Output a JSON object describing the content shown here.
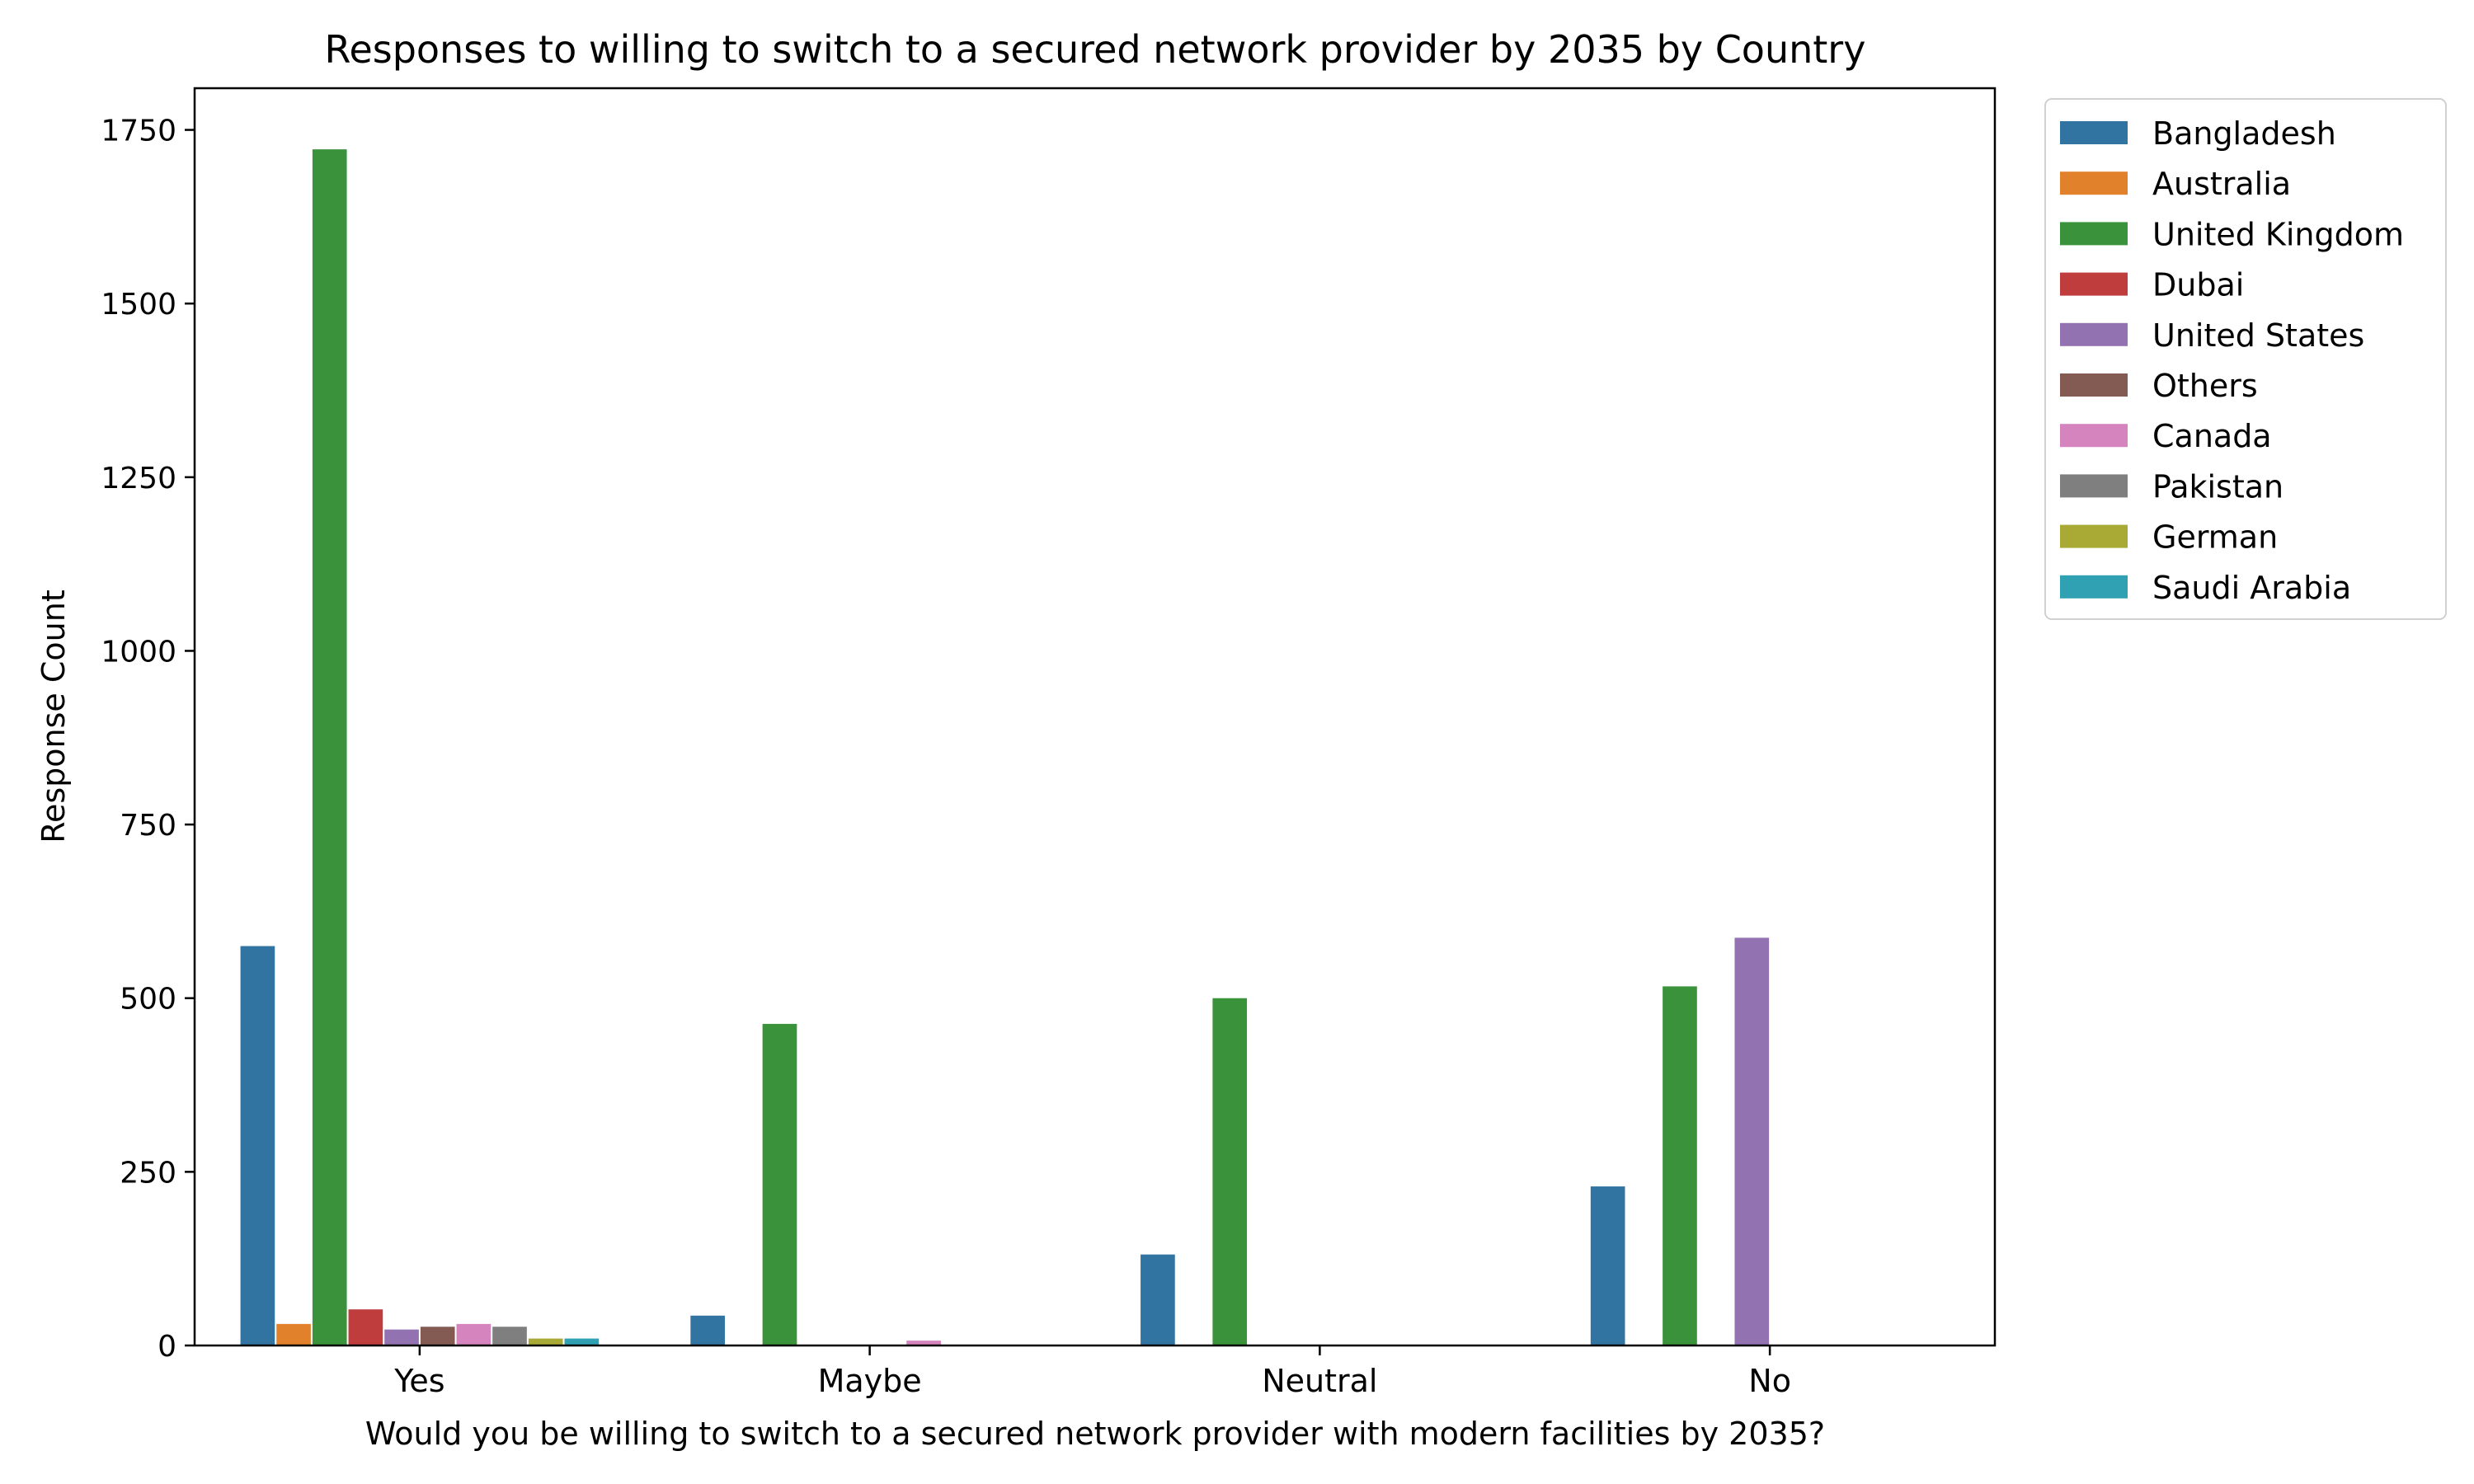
{
  "chart_data": {
    "type": "bar",
    "title": "Responses to willing to switch to a secured network provider by 2035 by Country",
    "xlabel": "Would you be willing to switch to a secured network provider with modern facilities by 2035?",
    "ylabel": "Response Count",
    "categories": [
      "Yes",
      "Maybe",
      "Neutral",
      "No"
    ],
    "ylim": [
      0,
      1810
    ],
    "yticks": [
      0,
      250,
      500,
      750,
      1000,
      1250,
      1500,
      1750
    ],
    "grid": false,
    "legend_position": "upper right, outside plot",
    "series": [
      {
        "name": "Bangladesh",
        "color": "#3274a1",
        "values": [
          575,
          43,
          131,
          229
        ]
      },
      {
        "name": "Australia",
        "color": "#e1812c",
        "values": [
          31,
          0,
          0,
          0
        ]
      },
      {
        "name": "United Kingdom",
        "color": "#3a923a",
        "values": [
          1722,
          463,
          500,
          517
        ]
      },
      {
        "name": "Dubai",
        "color": "#c03d3e",
        "values": [
          52,
          0,
          0,
          0
        ]
      },
      {
        "name": "United States",
        "color": "#9372b2",
        "values": [
          23,
          0,
          0,
          587
        ]
      },
      {
        "name": "Others",
        "color": "#845b53",
        "values": [
          27,
          0,
          0,
          0
        ]
      },
      {
        "name": "Canada",
        "color": "#d684bd",
        "values": [
          31,
          7,
          0,
          0
        ]
      },
      {
        "name": "Pakistan",
        "color": "#7f7f7f",
        "values": [
          27,
          0,
          0,
          0
        ]
      },
      {
        "name": "German",
        "color": "#a9aa35",
        "values": [
          10,
          0,
          0,
          0
        ]
      },
      {
        "name": "Saudi Arabia",
        "color": "#2fa1b3",
        "values": [
          10,
          0,
          0,
          0
        ]
      }
    ]
  }
}
